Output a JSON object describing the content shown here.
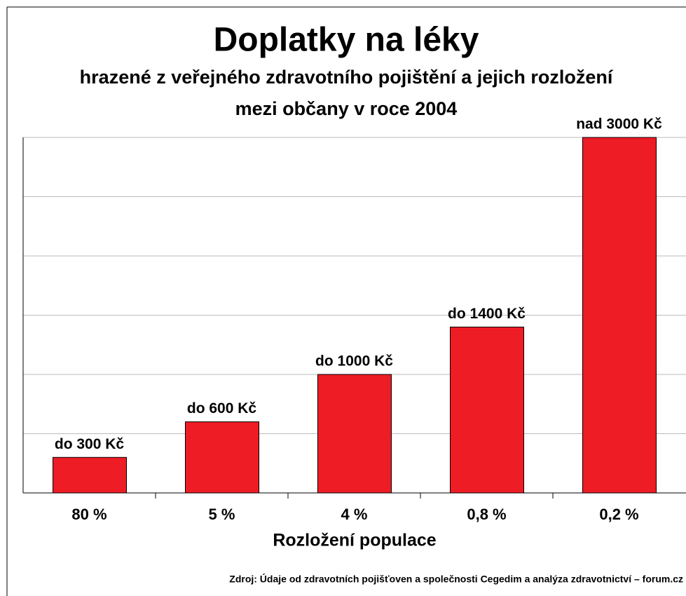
{
  "chart_data": {
    "type": "bar",
    "title": "Doplatky na léky",
    "subtitle": [
      "hrazené z veřejného zdravotního pojištění a jejich rozložení",
      "mezi občany v roce 2004"
    ],
    "x_label": "Rozložení populace",
    "source": "Zdroj: Údaje od zdravotních pojišťoven a společnosti Cegedim a analýza zdravotnictví – forum.cz",
    "categories": [
      "80 %",
      "5 %",
      "4 %",
      "0,8 %",
      "0,2 %"
    ],
    "values": [
      300,
      600,
      1000,
      1400,
      3000
    ],
    "value_labels": [
      "do 300 Kč",
      "do 600 Kč",
      "do 1000 Kč",
      "do 1400 Kč",
      "nad 3000 Kč"
    ],
    "color": "#ee1c25",
    "ylim": [
      0,
      3000
    ],
    "yticks": [
      0,
      500,
      1000,
      1500,
      2000,
      2500,
      3000
    ],
    "grid": true
  }
}
